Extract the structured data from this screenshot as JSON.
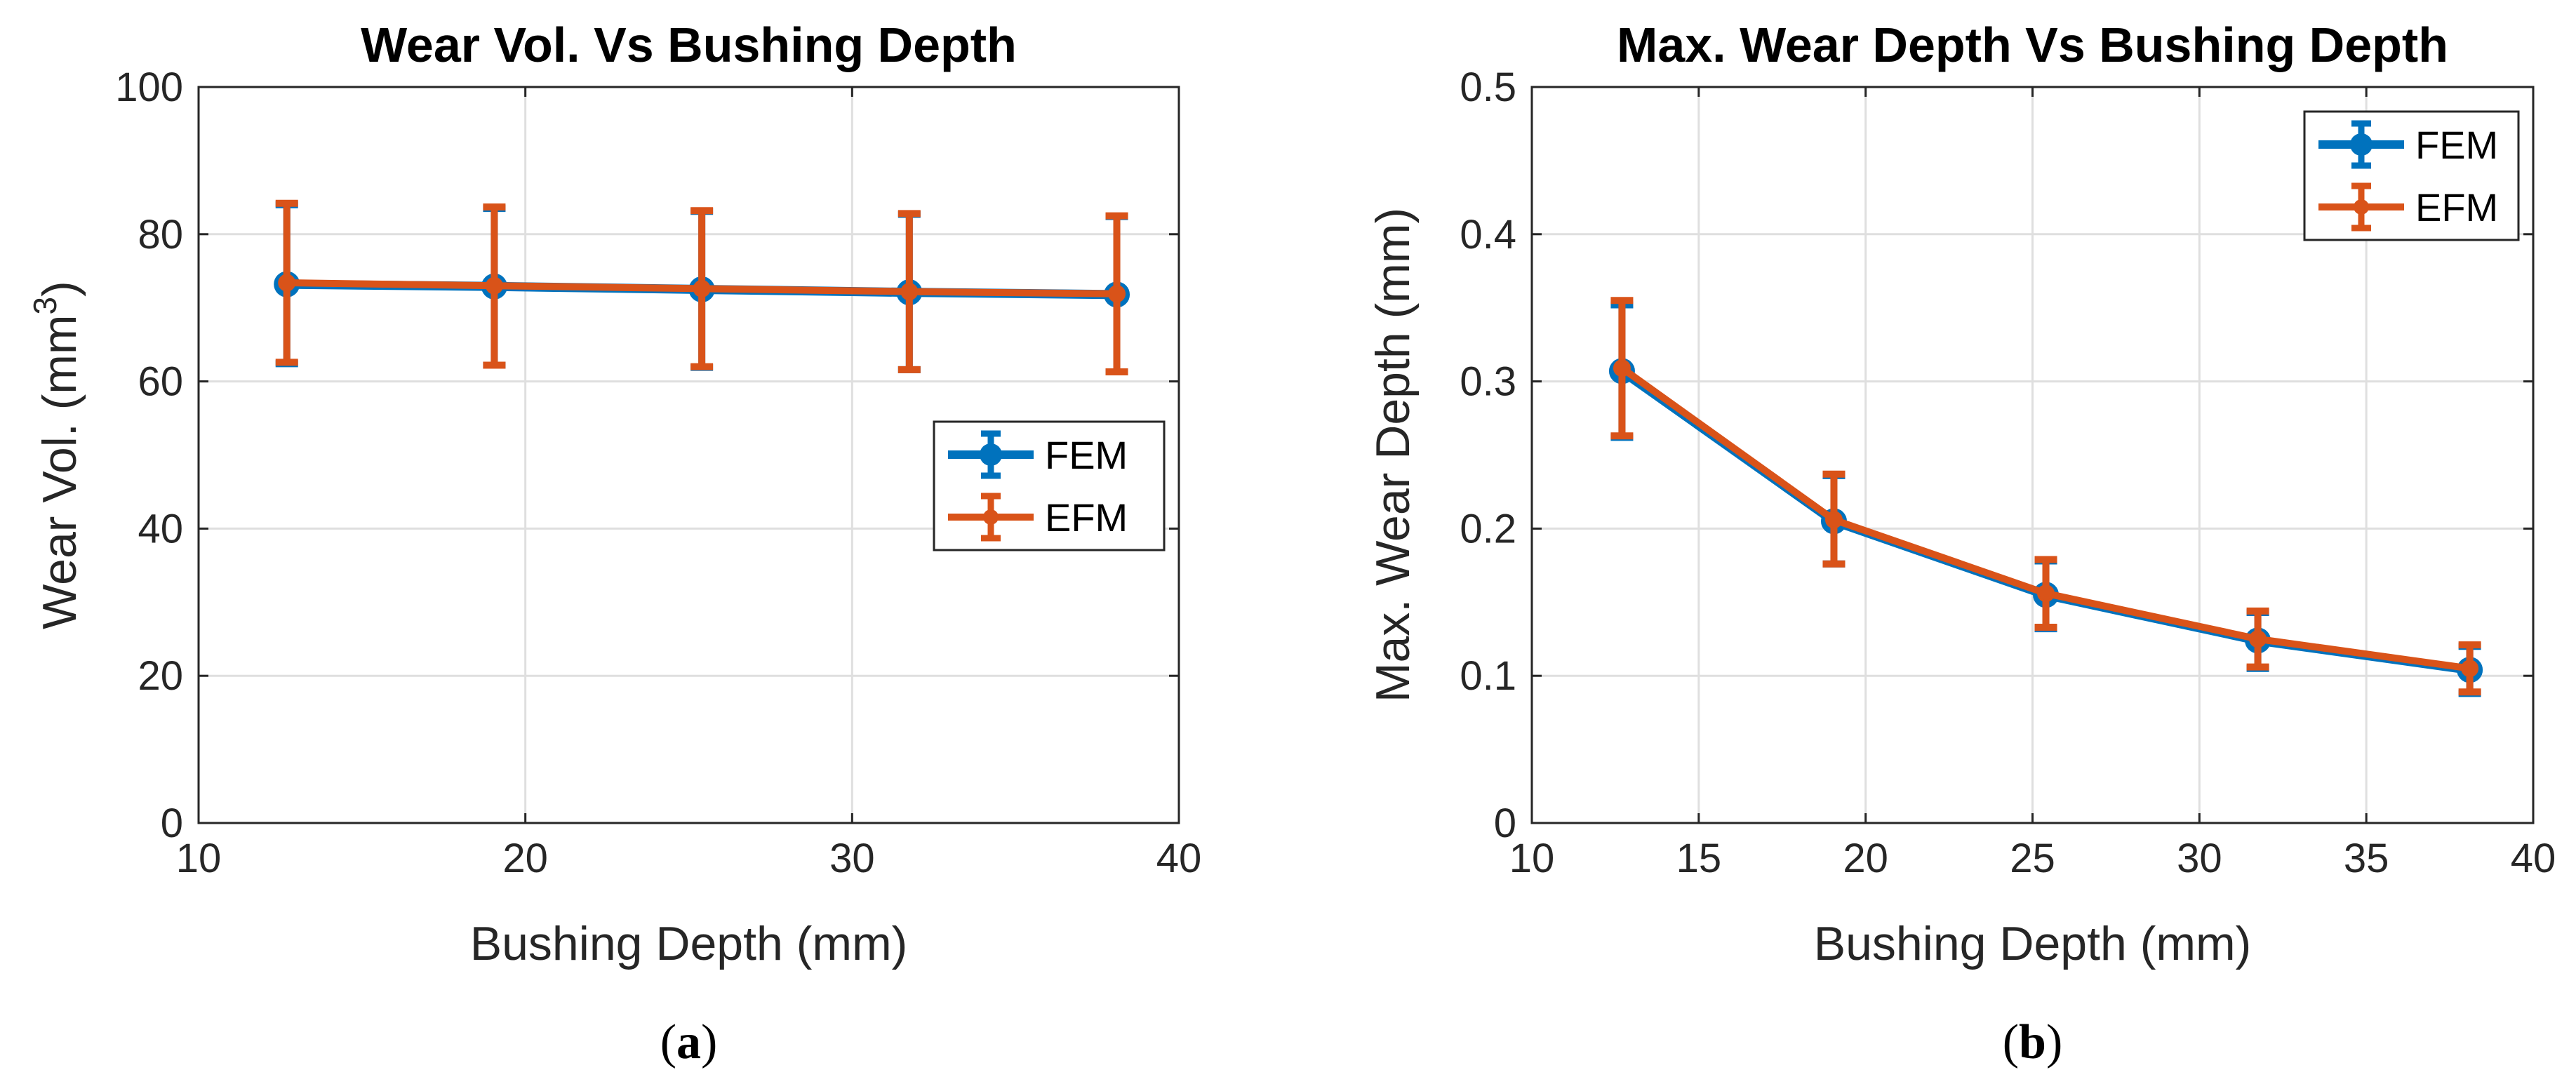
{
  "chart_data": [
    {
      "type": "line",
      "title": "Wear Vol. Vs Bushing Depth",
      "xlabel": "Bushing Depth (mm)",
      "ylabel_main": "Wear Vol. (mm",
      "ylabel_sup": "3",
      "ylabel_close": ")",
      "xlim": [
        10,
        40
      ],
      "ylim": [
        0,
        100
      ],
      "xticks": [
        10,
        20,
        30,
        40
      ],
      "yticks": [
        0,
        20,
        40,
        60,
        80,
        100
      ],
      "grid": true,
      "legend_position": "center-right",
      "panel_label": "a",
      "series": [
        {
          "name": "FEM",
          "color": "#0072BD",
          "x": [
            12.7,
            19.05,
            25.4,
            31.75,
            38.1
          ],
          "y": [
            73.2,
            72.9,
            72.5,
            72.1,
            71.8
          ],
          "err_low": [
            10.8,
            10.7,
            10.6,
            10.5,
            10.5
          ],
          "err_high": [
            10.8,
            10.6,
            10.6,
            10.6,
            10.6
          ]
        },
        {
          "name": "EFM",
          "color": "#D95319",
          "x": [
            12.7,
            19.05,
            25.4,
            31.75,
            38.1
          ],
          "y": [
            73.4,
            73.0,
            72.6,
            72.2,
            71.9
          ],
          "err_low": [
            10.8,
            10.8,
            10.6,
            10.6,
            10.6
          ],
          "err_high": [
            10.8,
            10.7,
            10.6,
            10.6,
            10.6
          ]
        }
      ]
    },
    {
      "type": "line",
      "title": "Max. Wear Depth Vs Bushing Depth",
      "xlabel": "Bushing Depth (mm)",
      "ylabel_main": "Max. Wear Depth (mm)",
      "ylabel_sup": "",
      "ylabel_close": "",
      "xlim": [
        10,
        40
      ],
      "ylim": [
        0,
        0.5
      ],
      "xticks": [
        10,
        15,
        20,
        25,
        30,
        35,
        40
      ],
      "yticks": [
        0,
        0.1,
        0.2,
        0.3,
        0.4,
        0.5
      ],
      "grid": true,
      "legend_position": "top-right",
      "panel_label": "b",
      "series": [
        {
          "name": "FEM",
          "color": "#0072BD",
          "x": [
            12.7,
            19.05,
            25.4,
            31.75,
            38.1
          ],
          "y": [
            0.307,
            0.205,
            0.155,
            0.124,
            0.104
          ],
          "err_low": [
            0.045,
            0.029,
            0.023,
            0.019,
            0.016
          ],
          "err_high": [
            0.045,
            0.031,
            0.023,
            0.019,
            0.016
          ]
        },
        {
          "name": "EFM",
          "color": "#D95319",
          "x": [
            12.7,
            19.05,
            25.4,
            31.75,
            38.1
          ],
          "y": [
            0.309,
            0.206,
            0.156,
            0.125,
            0.105
          ],
          "err_low": [
            0.046,
            0.03,
            0.023,
            0.019,
            0.016
          ],
          "err_high": [
            0.046,
            0.031,
            0.023,
            0.019,
            0.016
          ]
        }
      ]
    }
  ]
}
